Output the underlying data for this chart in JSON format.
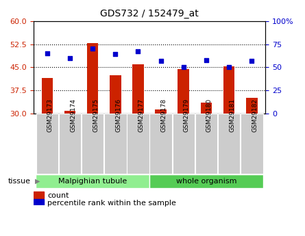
{
  "title": "GDS732 / 152479_at",
  "samples": [
    "GSM29173",
    "GSM29174",
    "GSM29175",
    "GSM29176",
    "GSM29177",
    "GSM29178",
    "GSM29179",
    "GSM29180",
    "GSM29181",
    "GSM29182"
  ],
  "counts": [
    41.5,
    30.8,
    52.8,
    42.5,
    46.0,
    31.2,
    44.5,
    33.5,
    45.2,
    35.0
  ],
  "percentiles": [
    65,
    60,
    70,
    64,
    67,
    57,
    50,
    58,
    50,
    57
  ],
  "tissue_groups": [
    {
      "label": "Malpighian tubule",
      "start": 0,
      "end": 5,
      "color": "#90ee90"
    },
    {
      "label": "whole organism",
      "start": 5,
      "end": 10,
      "color": "#55cc55"
    }
  ],
  "bar_color": "#cc2200",
  "dot_color": "#0000cc",
  "ylim_left": [
    30,
    60
  ],
  "ylim_right": [
    0,
    100
  ],
  "yticks_left": [
    30,
    37.5,
    45,
    52.5,
    60
  ],
  "yticks_right": [
    0,
    25,
    50,
    75,
    100
  ],
  "grid_lines": [
    37.5,
    45,
    52.5
  ],
  "legend_count_label": "count",
  "legend_pct_label": "percentile rank within the sample",
  "tissue_label": "tissue",
  "background_color": "#ffffff",
  "plot_bg_color": "#ffffff",
  "tick_bg_color": "#cccccc"
}
